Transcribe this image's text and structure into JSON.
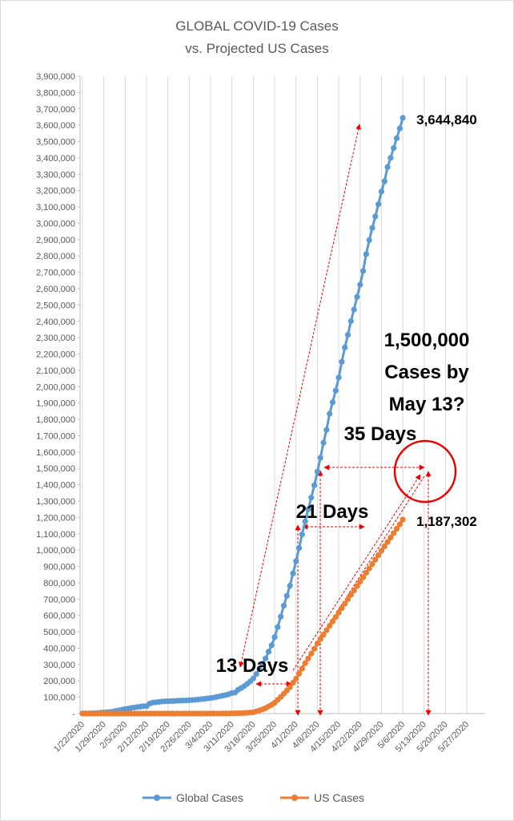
{
  "chart_data": {
    "type": "line",
    "title": [
      "GLOBAL COVID-19 Cases",
      "vs. Projected US Cases"
    ],
    "categories": [
      "1/22/2020",
      null,
      null,
      null,
      null,
      null,
      null,
      "1/29/2020",
      null,
      null,
      null,
      null,
      null,
      null,
      "2/5/2020",
      null,
      null,
      null,
      null,
      null,
      null,
      "2/12/2020",
      null,
      null,
      null,
      null,
      null,
      null,
      "2/19/2020",
      null,
      null,
      null,
      null,
      null,
      null,
      "2/26/2020",
      null,
      null,
      null,
      null,
      null,
      null,
      "3/4/2020",
      null,
      null,
      null,
      null,
      null,
      null,
      "3/11/2020",
      null,
      null,
      null,
      null,
      null,
      null,
      "3/18/2020",
      null,
      null,
      null,
      null,
      null,
      null,
      "3/25/2020",
      null,
      null,
      null,
      null,
      null,
      null,
      "4/1/2020",
      null,
      null,
      null,
      null,
      null,
      null,
      "4/8/2020",
      null,
      null,
      null,
      null,
      null,
      null,
      "4/15/2020",
      null,
      null,
      null,
      null,
      null,
      null,
      "4/22/2020",
      null,
      null,
      null,
      null,
      null,
      null,
      "4/29/2020",
      null,
      null,
      null,
      null,
      null,
      null,
      "5/6/2020",
      null,
      null,
      null,
      null,
      null,
      null,
      "5/13/2020",
      null,
      null,
      null,
      null,
      null,
      null,
      "5/20/2020",
      null,
      null,
      null,
      null,
      null,
      null,
      "5/27/2020",
      null,
      null,
      null,
      null,
      null,
      null
    ],
    "series": [
      {
        "name": "Global Cases",
        "color": "#5b9bd5",
        "end_label": "3,644,840",
        "values": [
          555,
          654,
          941,
          1434,
          2118,
          2927,
          5578,
          6166,
          8234,
          9927,
          12038,
          16787,
          19881,
          23892,
          27635,
          30794,
          34391,
          37120,
          40150,
          42762,
          44802,
          45221,
          60368,
          66885,
          69030,
          71224,
          73258,
          75136,
          75639,
          76197,
          76819,
          78572,
          78958,
          79561,
          80406,
          81388,
          82746,
          84112,
          86011,
          88369,
          90306,
          92840,
          95120,
          97886,
          101801,
          105847,
          109821,
          113590,
          118620,
          125875,
          128352,
          145205,
          156101,
          167454,
          181574,
          197102,
          214821,
          242570,
          272208,
          304507,
          336953,
          378231,
          418041,
          467653,
          529591,
          593291,
          660706,
          720117,
          782365,
          857487,
          932605,
          1013157,
          1095917,
          1176060,
          1249754,
          1321481,
          1396476,
          1479804,
          1565278,
          1657526,
          1735650,
          1834721,
          1904838,
          1976191,
          2056054,
          2152437,
          2240190,
          2317759,
          2401378,
          2472259,
          2549123,
          2624107,
          2708403,
          2811193,
          2896746,
          2971475,
          3041764,
          3116398,
          3193886,
          3256846,
          3343777,
          3400000,
          3460000,
          3520000,
          3580000,
          3644840,
          null,
          null,
          null,
          null,
          null,
          null,
          null,
          null,
          null,
          null,
          null,
          null,
          null,
          null,
          null,
          null,
          null,
          null,
          null,
          null,
          null,
          null,
          null,
          null,
          null,
          null,
          null
        ]
      },
      {
        "name": "US Cases",
        "color": "#ed7d31",
        "end_label": "1,187,302",
        "values": [
          1,
          1,
          2,
          2,
          5,
          5,
          5,
          5,
          5,
          7,
          8,
          8,
          11,
          11,
          11,
          11,
          11,
          11,
          11,
          11,
          12,
          12,
          13,
          13,
          13,
          13,
          13,
          13,
          13,
          13,
          15,
          15,
          15,
          51,
          51,
          57,
          58,
          60,
          68,
          74,
          98,
          118,
          149,
          217,
          262,
          402,
          518,
          583,
          959,
          1281,
          1663,
          2179,
          2727,
          3499,
          4632,
          6421,
          7786,
          13680,
          19101,
          25493,
          33276,
          43847,
          53740,
          65778,
          83836,
          101657,
          121478,
          140886,
          161807,
          188172,
          213372,
          243762,
          275586,
          308853,
          337072,
          366667,
          396223,
          429052,
          456000,
          483000,
          510000,
          537000,
          564000,
          591000,
          618000,
          645000,
          672000,
          699000,
          726000,
          753000,
          780000,
          807000,
          834000,
          861000,
          888000,
          915000,
          942000,
          969000,
          996000,
          1023000,
          1050000,
          1077000,
          1104000,
          1131000,
          1158000,
          1187302,
          null,
          null,
          null,
          null,
          null,
          null,
          null,
          null,
          null,
          null,
          null,
          null,
          null,
          null,
          null,
          null,
          null,
          null,
          null,
          null,
          null,
          null,
          null,
          null,
          null,
          null,
          null
        ]
      }
    ],
    "ylim": [
      0,
      3900000
    ],
    "yticks": [
      {
        "value": 0,
        "label": "-"
      },
      {
        "value": 100000,
        "label": "100,000"
      },
      {
        "value": 200000,
        "label": "200,000"
      },
      {
        "value": 300000,
        "label": "300,000"
      },
      {
        "value": 400000,
        "label": "400,000"
      },
      {
        "value": 500000,
        "label": "500,000"
      },
      {
        "value": 600000,
        "label": "600,000"
      },
      {
        "value": 700000,
        "label": "700,000"
      },
      {
        "value": 800000,
        "label": "800,000"
      },
      {
        "value": 900000,
        "label": "900,000"
      },
      {
        "value": 1000000,
        "label": "1,000,000"
      },
      {
        "value": 1100000,
        "label": "1,100,000"
      },
      {
        "value": 1200000,
        "label": "1,200,000"
      },
      {
        "value": 1300000,
        "label": "1,300,000"
      },
      {
        "value": 1400000,
        "label": "1,400,000"
      },
      {
        "value": 1500000,
        "label": "1,500,000"
      },
      {
        "value": 1600000,
        "label": "1,600,000"
      },
      {
        "value": 1700000,
        "label": "1,700,000"
      },
      {
        "value": 1800000,
        "label": "1,800,000"
      },
      {
        "value": 1900000,
        "label": "1,900,000"
      },
      {
        "value": 2000000,
        "label": "2,000,000"
      },
      {
        "value": 2100000,
        "label": "2,100,000"
      },
      {
        "value": 2200000,
        "label": "2,200,000"
      },
      {
        "value": 2300000,
        "label": "2,300,000"
      },
      {
        "value": 2400000,
        "label": "2,400,000"
      },
      {
        "value": 2500000,
        "label": "2,500,000"
      },
      {
        "value": 2600000,
        "label": "2,600,000"
      },
      {
        "value": 2700000,
        "label": "2,700,000"
      },
      {
        "value": 2800000,
        "label": "2,800,000"
      },
      {
        "value": 2900000,
        "label": "2,900,000"
      },
      {
        "value": 3000000,
        "label": "3,000,000"
      },
      {
        "value": 3100000,
        "label": "3,100,000"
      },
      {
        "value": 3200000,
        "label": "3,200,000"
      },
      {
        "value": 3300000,
        "label": "3,300,000"
      },
      {
        "value": 3400000,
        "label": "3,400,000"
      },
      {
        "value": 3500000,
        "label": "3,500,000"
      },
      {
        "value": 3600000,
        "label": "3,600,000"
      },
      {
        "value": 3700000,
        "label": "3,700,000"
      },
      {
        "value": 3800000,
        "label": "3,800,000"
      },
      {
        "value": 3900000,
        "label": "3,900,000"
      }
    ],
    "grid": "x",
    "legend": "bottom",
    "annotations": {
      "projection": [
        "1,500,000",
        "Cases by",
        "May 13?"
      ],
      "days35": "35 Days",
      "days21": "21 Days",
      "days13": "13 Days"
    }
  }
}
